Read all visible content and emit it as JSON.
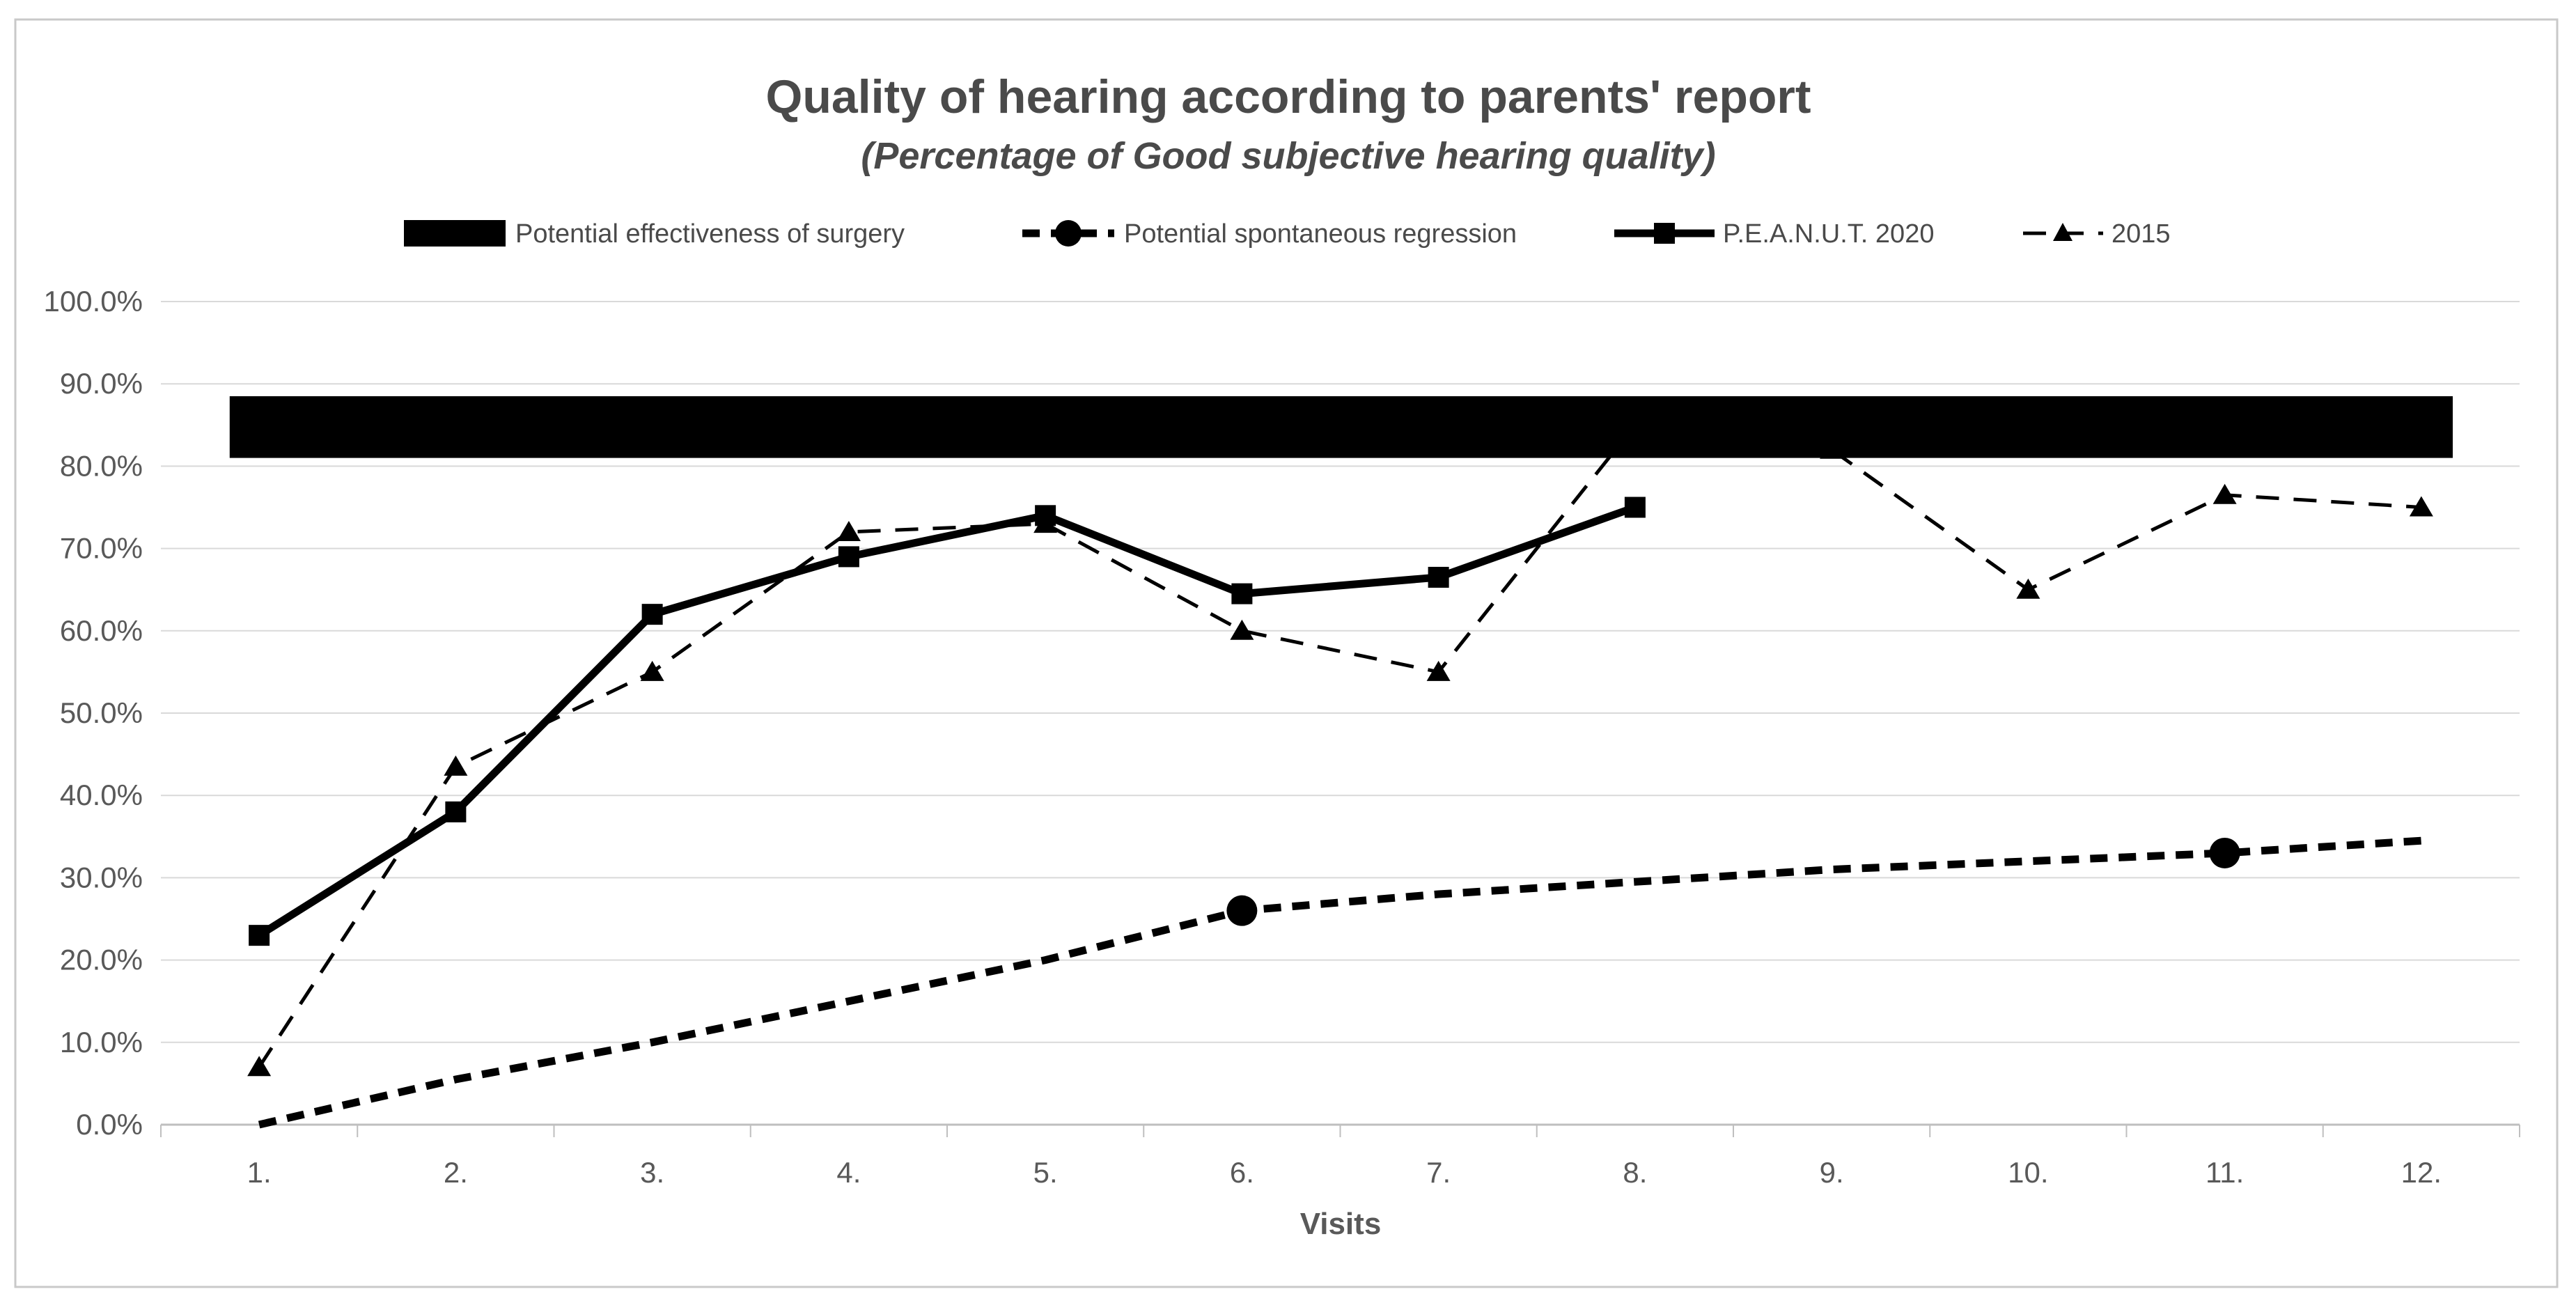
{
  "figure": {
    "border_color": "#c9c9c9",
    "background": "#ffffff"
  },
  "chart_data": {
    "type": "line",
    "title": "Quality of hearing according to parents' report",
    "subtitle": "(Percentage of Good subjective hearing quality)",
    "xlabel": "Visits",
    "ylabel": "",
    "categories": [
      "1.",
      "2.",
      "3.",
      "4.",
      "5.",
      "6.",
      "7.",
      "8.",
      "9.",
      "10.",
      "11.",
      "12."
    ],
    "ylim": [
      0,
      100
    ],
    "ytick_step": 10,
    "ytick_labels": [
      "0.0%",
      "10.0%",
      "20.0%",
      "30.0%",
      "40.0%",
      "50.0%",
      "60.0%",
      "70.0%",
      "80.0%",
      "90.0%",
      "100.0%"
    ],
    "grid": true,
    "legend_position": "top-center",
    "series": [
      {
        "name": "Potential effectiveness of surgery",
        "kind": "band",
        "visit_span": [
          0.85,
          12.16
        ],
        "pct_span": [
          81,
          88.5
        ],
        "color": "#000000",
        "legend_swatch": "thick-black-bar"
      },
      {
        "name": "Potential spontaneous regression",
        "kind": "line",
        "line_style": "bold-dashed",
        "marker": "circle",
        "marker_at_visits": [
          6,
          11
        ],
        "values": [
          0,
          5.5,
          10,
          15,
          20,
          26,
          28,
          29.5,
          31,
          32,
          33,
          34.5
        ],
        "color": "#000000"
      },
      {
        "name": "P.E.A.N.U.T. 2020",
        "kind": "line",
        "line_style": "solid",
        "marker": "square",
        "values": [
          23,
          38,
          62,
          69,
          74,
          64.5,
          66.5,
          75,
          null,
          null,
          null,
          null
        ],
        "color": "#000000"
      },
      {
        "name": "2015",
        "kind": "line",
        "line_style": "dashed",
        "marker": "triangle",
        "values": [
          7,
          43.5,
          55,
          72,
          73,
          60,
          55,
          85,
          82,
          65,
          76.5,
          75
        ],
        "markers_hidden_behind_band_at_visits": [
          8,
          9
        ],
        "color": "#000000"
      }
    ],
    "colors": {
      "text_title": "#4a4a4a",
      "text_axis": "#595959",
      "gridline": "#d9d9d9",
      "axis_line": "#bfbfbf",
      "series": "#000000",
      "background": "#ffffff"
    }
  }
}
